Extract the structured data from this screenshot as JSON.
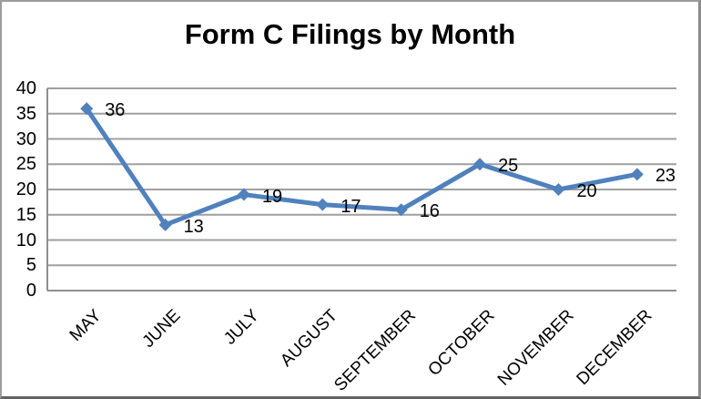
{
  "chart_data": {
    "type": "line",
    "title": "Form C Filings by Month",
    "categories": [
      "MAY",
      "JUNE",
      "JULY",
      "AUGUST",
      "SEPTEMBER",
      "OCTOBER",
      "NOVEMBER",
      "DECEMBER"
    ],
    "values": [
      36,
      13,
      19,
      17,
      16,
      25,
      20,
      23
    ],
    "data_labels": [
      "36",
      "13",
      "19",
      "17",
      "16",
      "25",
      "20",
      "23"
    ],
    "xlabel": "",
    "ylabel": "",
    "ylim": [
      0,
      40
    ],
    "y_ticks": [
      0,
      5,
      10,
      15,
      20,
      25,
      30,
      35,
      40
    ],
    "grid": "horizontal",
    "legend": "none",
    "x_label_rotation_deg": -45,
    "series_color": "#4f81bd",
    "marker_shape": "diamond",
    "gridline_color": "#9f9f9f",
    "axis_color": "#8f8f8f",
    "text_color": "#000000",
    "background_color": "#ffffff"
  }
}
